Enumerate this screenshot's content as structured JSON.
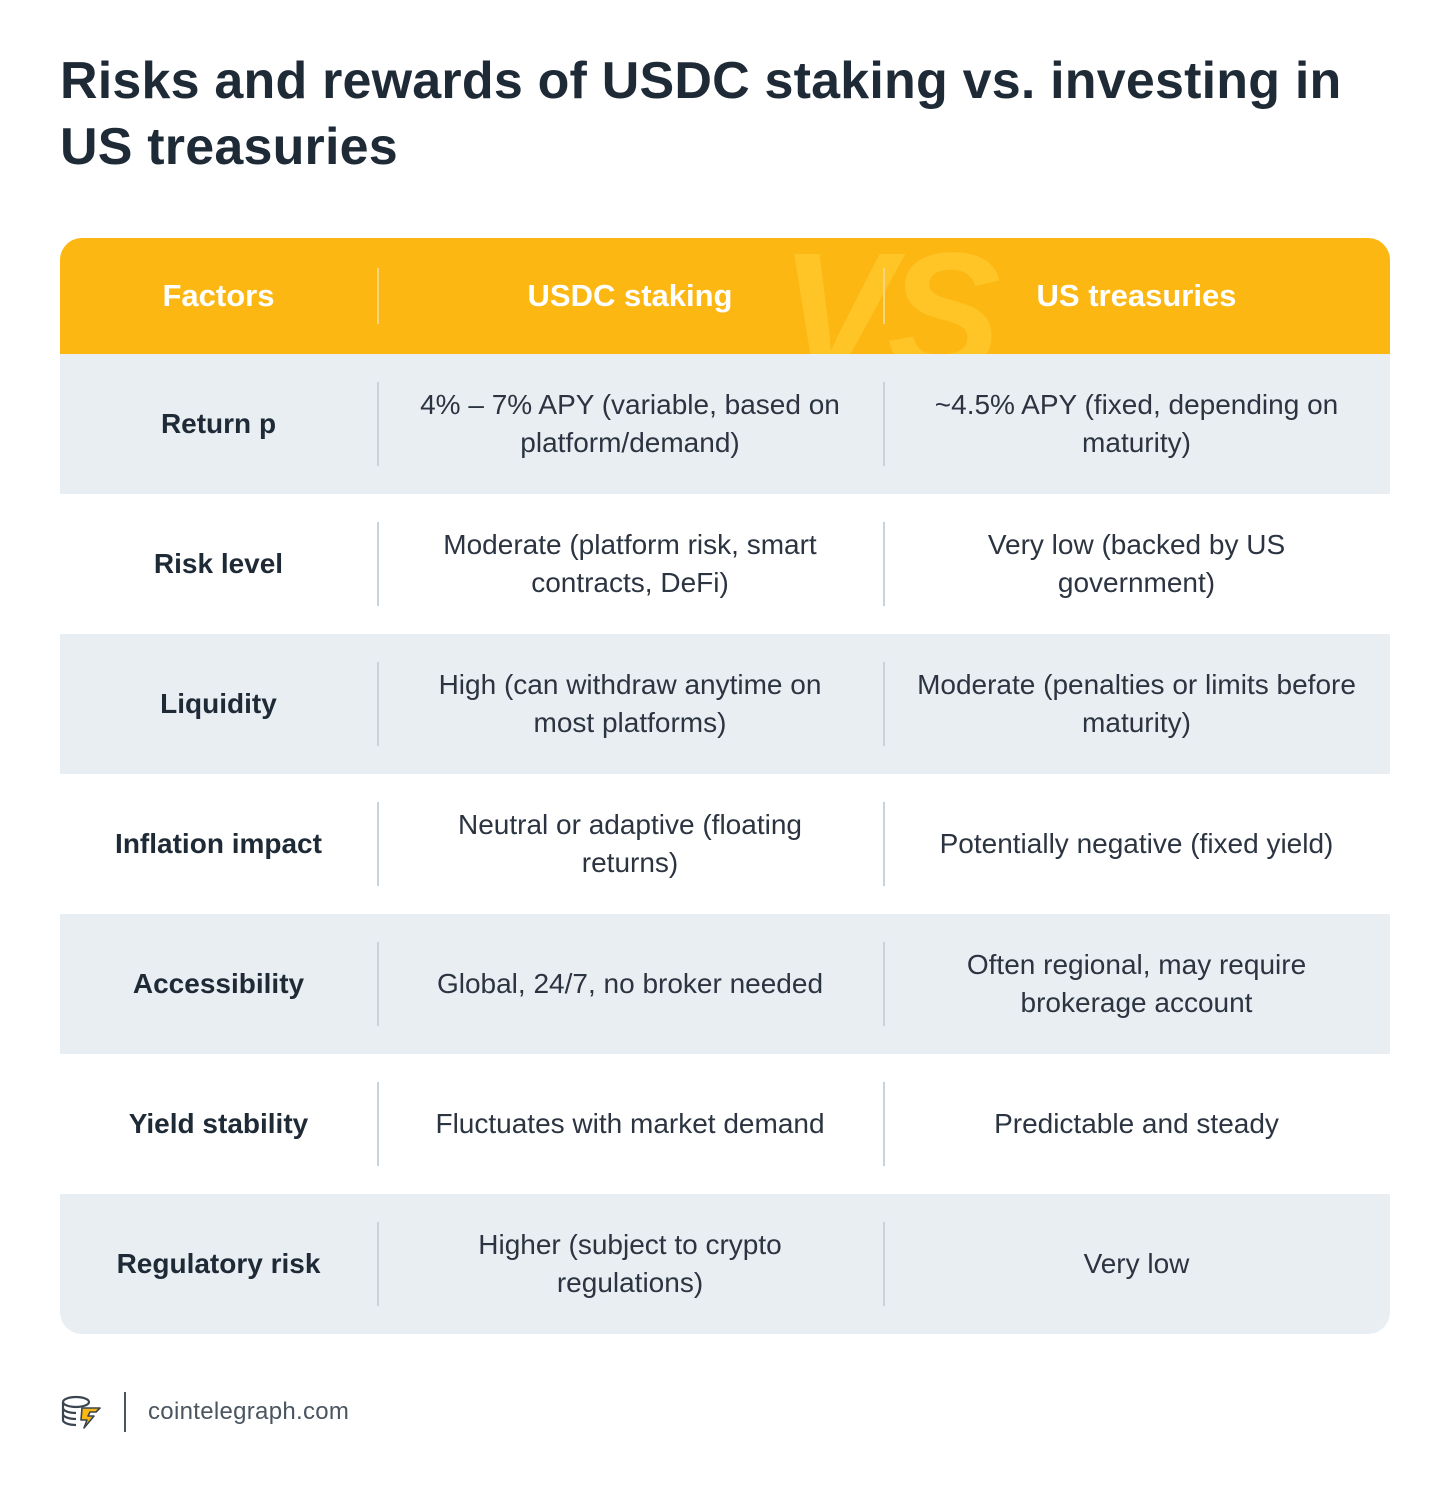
{
  "title": "Risks and rewards of USDC staking vs. investing in US treasuries",
  "header": {
    "columns": [
      "Factors",
      "USDC staking",
      "US treasuries"
    ],
    "watermark": "VS"
  },
  "rows": [
    {
      "factor": "Return p",
      "usdc": "4% – 7% APY (variable, based on platform/demand)",
      "treasuries": "~4.5% APY (fixed, depending on maturity)"
    },
    {
      "factor": "Risk level",
      "usdc": "Moderate (platform risk, smart contracts, DeFi)",
      "treasuries": "Very low (backed by US government)"
    },
    {
      "factor": "Liquidity",
      "usdc": "High (can withdraw anytime on most platforms)",
      "treasuries": "Moderate (penalties or limits before maturity)"
    },
    {
      "factor": "Inflation impact",
      "usdc": "Neutral or adaptive (floating returns)",
      "treasuries": "Potentially negative (fixed yield)"
    },
    {
      "factor": "Accessibility",
      "usdc": "Global, 24/7, no broker needed",
      "treasuries": "Often regional, may require brokerage account"
    },
    {
      "factor": "Yield stability",
      "usdc": "Fluctuates with market demand",
      "treasuries": "Predictable and steady"
    },
    {
      "factor": "Regulatory risk",
      "usdc": "Higher (subject to crypto regulations)",
      "treasuries": "Very low"
    }
  ],
  "footer": {
    "source": "cointelegraph.com",
    "logo_icon": "cointelegraph-logo-icon"
  },
  "colors": {
    "header_bg": "#fdb713",
    "row_shade": "#e9eef3",
    "text": "#1f2a37"
  }
}
